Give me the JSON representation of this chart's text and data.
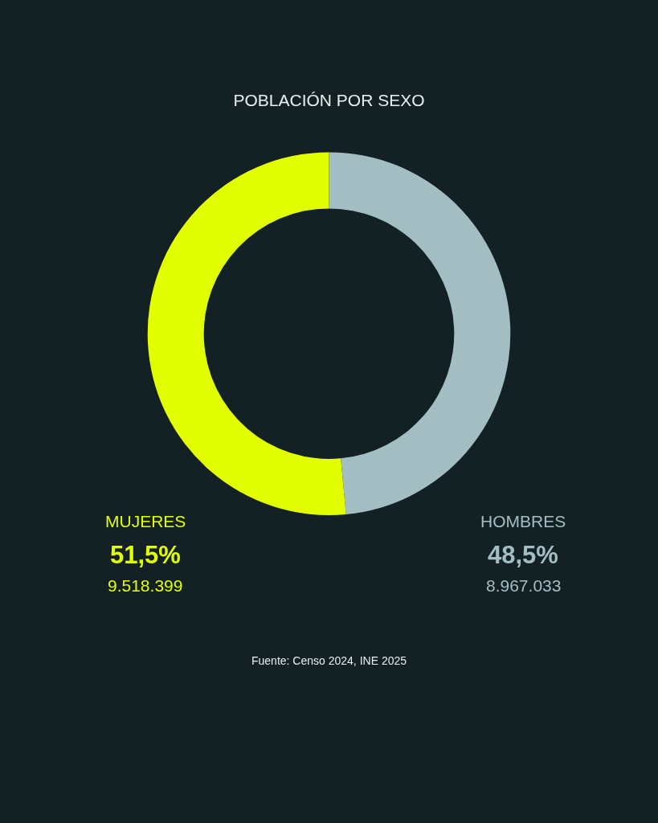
{
  "chart_data": {
    "type": "donut",
    "title": "POBLACIÓN POR SEXO",
    "categories": [
      "HOMBRES",
      "MUJERES"
    ],
    "values": [
      48.5,
      51.5
    ],
    "value_labels": [
      "48,5%",
      "51,5%"
    ],
    "colors": [
      "#a3bec2",
      "#e1ff00"
    ],
    "legend": false,
    "annotations": [
      "8.967.033",
      "9.518.399",
      "Fuente: Censo 2024, INE 2025"
    ]
  }
}
